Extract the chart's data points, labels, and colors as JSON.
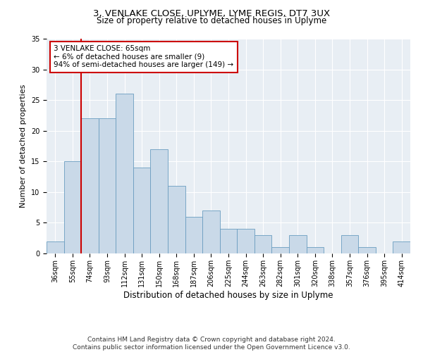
{
  "title": "3, VENLAKE CLOSE, UPLYME, LYME REGIS, DT7 3UX",
  "subtitle": "Size of property relative to detached houses in Uplyme",
  "xlabel": "Distribution of detached houses by size in Uplyme",
  "ylabel": "Number of detached properties",
  "categories": [
    "36sqm",
    "55sqm",
    "74sqm",
    "93sqm",
    "112sqm",
    "131sqm",
    "150sqm",
    "168sqm",
    "187sqm",
    "206sqm",
    "225sqm",
    "244sqm",
    "263sqm",
    "282sqm",
    "301sqm",
    "320sqm",
    "338sqm",
    "357sqm",
    "376sqm",
    "395sqm",
    "414sqm"
  ],
  "values": [
    2,
    15,
    22,
    22,
    26,
    14,
    17,
    11,
    6,
    7,
    4,
    4,
    3,
    1,
    3,
    1,
    0,
    3,
    1,
    0,
    2
  ],
  "bar_color": "#c9d9e8",
  "bar_edge_color": "#6a9dc0",
  "vline_x_index": 1,
  "vline_color": "#cc0000",
  "annotation_text": "3 VENLAKE CLOSE: 65sqm\n← 6% of detached houses are smaller (9)\n94% of semi-detached houses are larger (149) →",
  "annotation_box_color": "white",
  "annotation_box_edge": "#cc0000",
  "ylim": [
    0,
    35
  ],
  "yticks": [
    0,
    5,
    10,
    15,
    20,
    25,
    30,
    35
  ],
  "background_color": "#e8eef4",
  "footer_line1": "Contains HM Land Registry data © Crown copyright and database right 2024.",
  "footer_line2": "Contains public sector information licensed under the Open Government Licence v3.0.",
  "title_fontsize": 9.5,
  "subtitle_fontsize": 8.5,
  "xlabel_fontsize": 8.5,
  "ylabel_fontsize": 8,
  "tick_fontsize": 7,
  "annotation_fontsize": 7.5,
  "footer_fontsize": 6.5
}
